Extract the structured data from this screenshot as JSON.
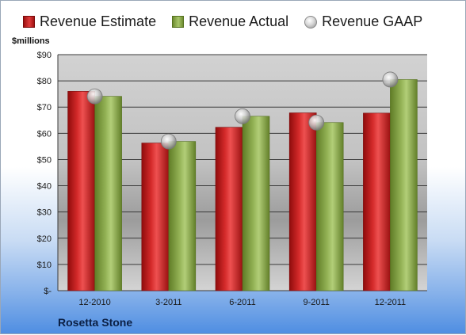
{
  "chart_data": {
    "type": "bar",
    "categories": [
      "12-2010",
      "3-2011",
      "6-2011",
      "9-2011",
      "12-2011"
    ],
    "series": [
      {
        "name": "Revenue Estimate",
        "values": [
          76,
          56.3,
          62.3,
          67.8,
          67.7
        ],
        "color": "#cc2222"
      },
      {
        "name": "Revenue Actual",
        "values": [
          74.1,
          56.9,
          66.5,
          64.1,
          80.5
        ],
        "color": "#8fae4e"
      }
    ],
    "markers": {
      "name": "Revenue GAAP",
      "values": [
        74.1,
        56.9,
        66.5,
        64.1,
        80.5
      ],
      "color": "#c8c8c8"
    },
    "ylabel": "$millions",
    "ylim": [
      0,
      90
    ],
    "yticks": [
      {
        "value": 0,
        "label": "$-"
      },
      {
        "value": 10,
        "label": "$10"
      },
      {
        "value": 20,
        "label": "$20"
      },
      {
        "value": 30,
        "label": "$30"
      },
      {
        "value": 40,
        "label": "$40"
      },
      {
        "value": 50,
        "label": "$50"
      },
      {
        "value": 60,
        "label": "$60"
      },
      {
        "value": 70,
        "label": "$70"
      },
      {
        "value": 80,
        "label": "$80"
      },
      {
        "value": 90,
        "label": "$90"
      }
    ],
    "grid": true,
    "legend_position": "top"
  },
  "legend": {
    "estimate": "Revenue Estimate",
    "actual": "Revenue Actual",
    "gaap": "Revenue GAAP"
  },
  "units_label": "$millions",
  "company_name": "Rosetta Stone"
}
